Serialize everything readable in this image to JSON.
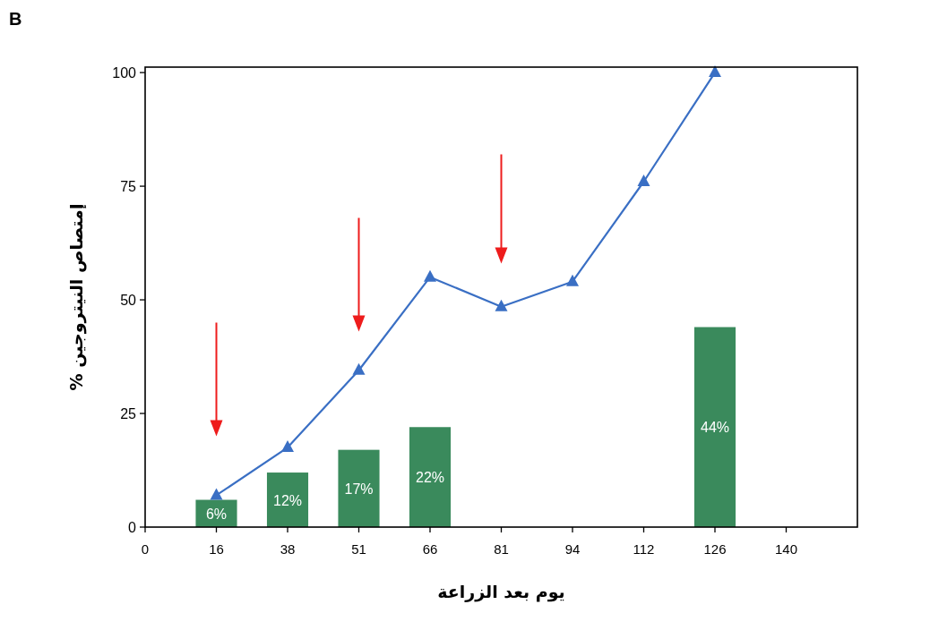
{
  "chart_data": {
    "type": "bar",
    "title": "B",
    "xlabel": "يوم بعد الزراعة",
    "ylabel": "إمتصاص النيتروجين %",
    "categories": [
      "0",
      "16",
      "38",
      "51",
      "66",
      "81",
      "94",
      "112",
      "126",
      "140"
    ],
    "series": [
      {
        "type": "bar",
        "color": "#3a8a5c",
        "values": [
          null,
          6,
          12,
          17,
          22,
          null,
          null,
          null,
          44,
          null
        ],
        "value_labels": [
          null,
          "6%",
          "12%",
          "17%",
          "22%",
          null,
          null,
          null,
          "44%",
          null
        ]
      },
      {
        "type": "line",
        "color": "#3a6fc4",
        "marker": "triangle",
        "line_style": "solid",
        "values": [
          null,
          7,
          17.5,
          34.5,
          55,
          48.5,
          54,
          76,
          100,
          null
        ]
      }
    ],
    "ylim": [
      0,
      101.2
    ],
    "yticks": [
      0,
      25,
      50,
      75,
      100
    ],
    "grid": false,
    "legend": false
  }
}
